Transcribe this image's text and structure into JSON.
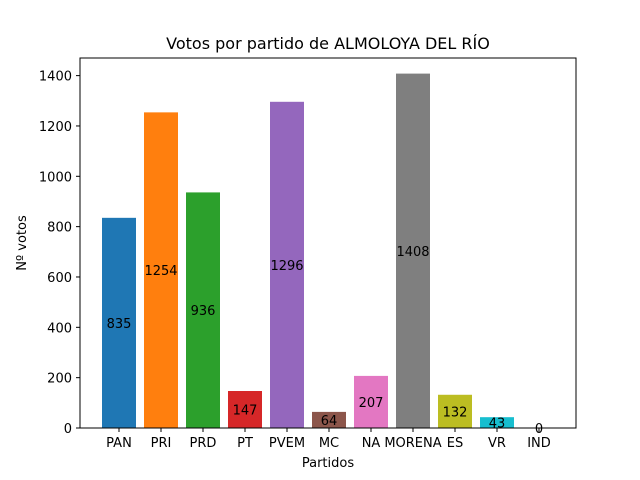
{
  "chart_data": {
    "type": "bar",
    "title": "Votos por partido de ALMOLOYA DEL RÍO",
    "xlabel": "Partidos",
    "ylabel": "Nº votos",
    "ylim": [
      0,
      1470
    ],
    "yticks": [
      0,
      200,
      400,
      600,
      800,
      1000,
      1200,
      1400
    ],
    "grid": false,
    "categories": [
      "PAN",
      "PRI",
      "PRD",
      "PT",
      "PVEM",
      "MC",
      "NA",
      "MORENA",
      "ES",
      "VR",
      "IND"
    ],
    "values": [
      835,
      1254,
      936,
      147,
      1296,
      64,
      207,
      1408,
      132,
      43,
      0
    ],
    "colors": [
      "#1f77b4",
      "#ff7f0e",
      "#2ca02c",
      "#d62728",
      "#9467bd",
      "#8c564b",
      "#e377c2",
      "#7f7f7f",
      "#bcbd22",
      "#17becf",
      "#1f77b4"
    ]
  }
}
